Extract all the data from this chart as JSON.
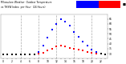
{
  "background_color": "#ffffff",
  "plot_bg_color": "#ffffff",
  "grid_color": "#aaaaaa",
  "text_color": "#000000",
  "hours": [
    0,
    1,
    2,
    3,
    4,
    5,
    6,
    7,
    8,
    9,
    10,
    11,
    12,
    13,
    14,
    15,
    16,
    17,
    18,
    19,
    20,
    21,
    22,
    23
  ],
  "temp_values": [
    29,
    29,
    29,
    29,
    29,
    29,
    29,
    29,
    30,
    31,
    33,
    35,
    37,
    38,
    37,
    36,
    35,
    34,
    33,
    32,
    31,
    30,
    30,
    29
  ],
  "thsw_values": [
    29,
    29,
    29,
    29,
    29,
    29,
    29,
    29,
    32,
    38,
    46,
    54,
    60,
    65,
    62,
    58,
    52,
    47,
    42,
    38,
    34,
    32,
    30,
    29
  ],
  "temp_color": "#ff0000",
  "thsw_color": "#0000ff",
  "black_color": "#000000",
  "ylim": [
    25,
    70
  ],
  "ytick_values": [
    30,
    35,
    40,
    45,
    50,
    55,
    60,
    65
  ],
  "ytick_labels": [
    "30",
    "35",
    "40",
    "45",
    "50",
    "55",
    "60",
    "65"
  ],
  "xtick_labels": [
    "0",
    "",
    "2",
    "",
    "4",
    "",
    "6",
    "",
    "8",
    "",
    "10",
    "",
    "12",
    "",
    "14",
    "",
    "16",
    "",
    "18",
    "",
    "20",
    "",
    "22",
    ""
  ],
  "dashed_hours": [
    4,
    8,
    12,
    16,
    20
  ],
  "marker_size": 2.5,
  "legend_blue_label": "THSW Index",
  "legend_red_label": "Outdoor Temp",
  "title_left": "Milwaukee Weather  Outdoor Temperature",
  "title_right_blue": "THSW Index",
  "title_right_red": "Outdoor Temp"
}
